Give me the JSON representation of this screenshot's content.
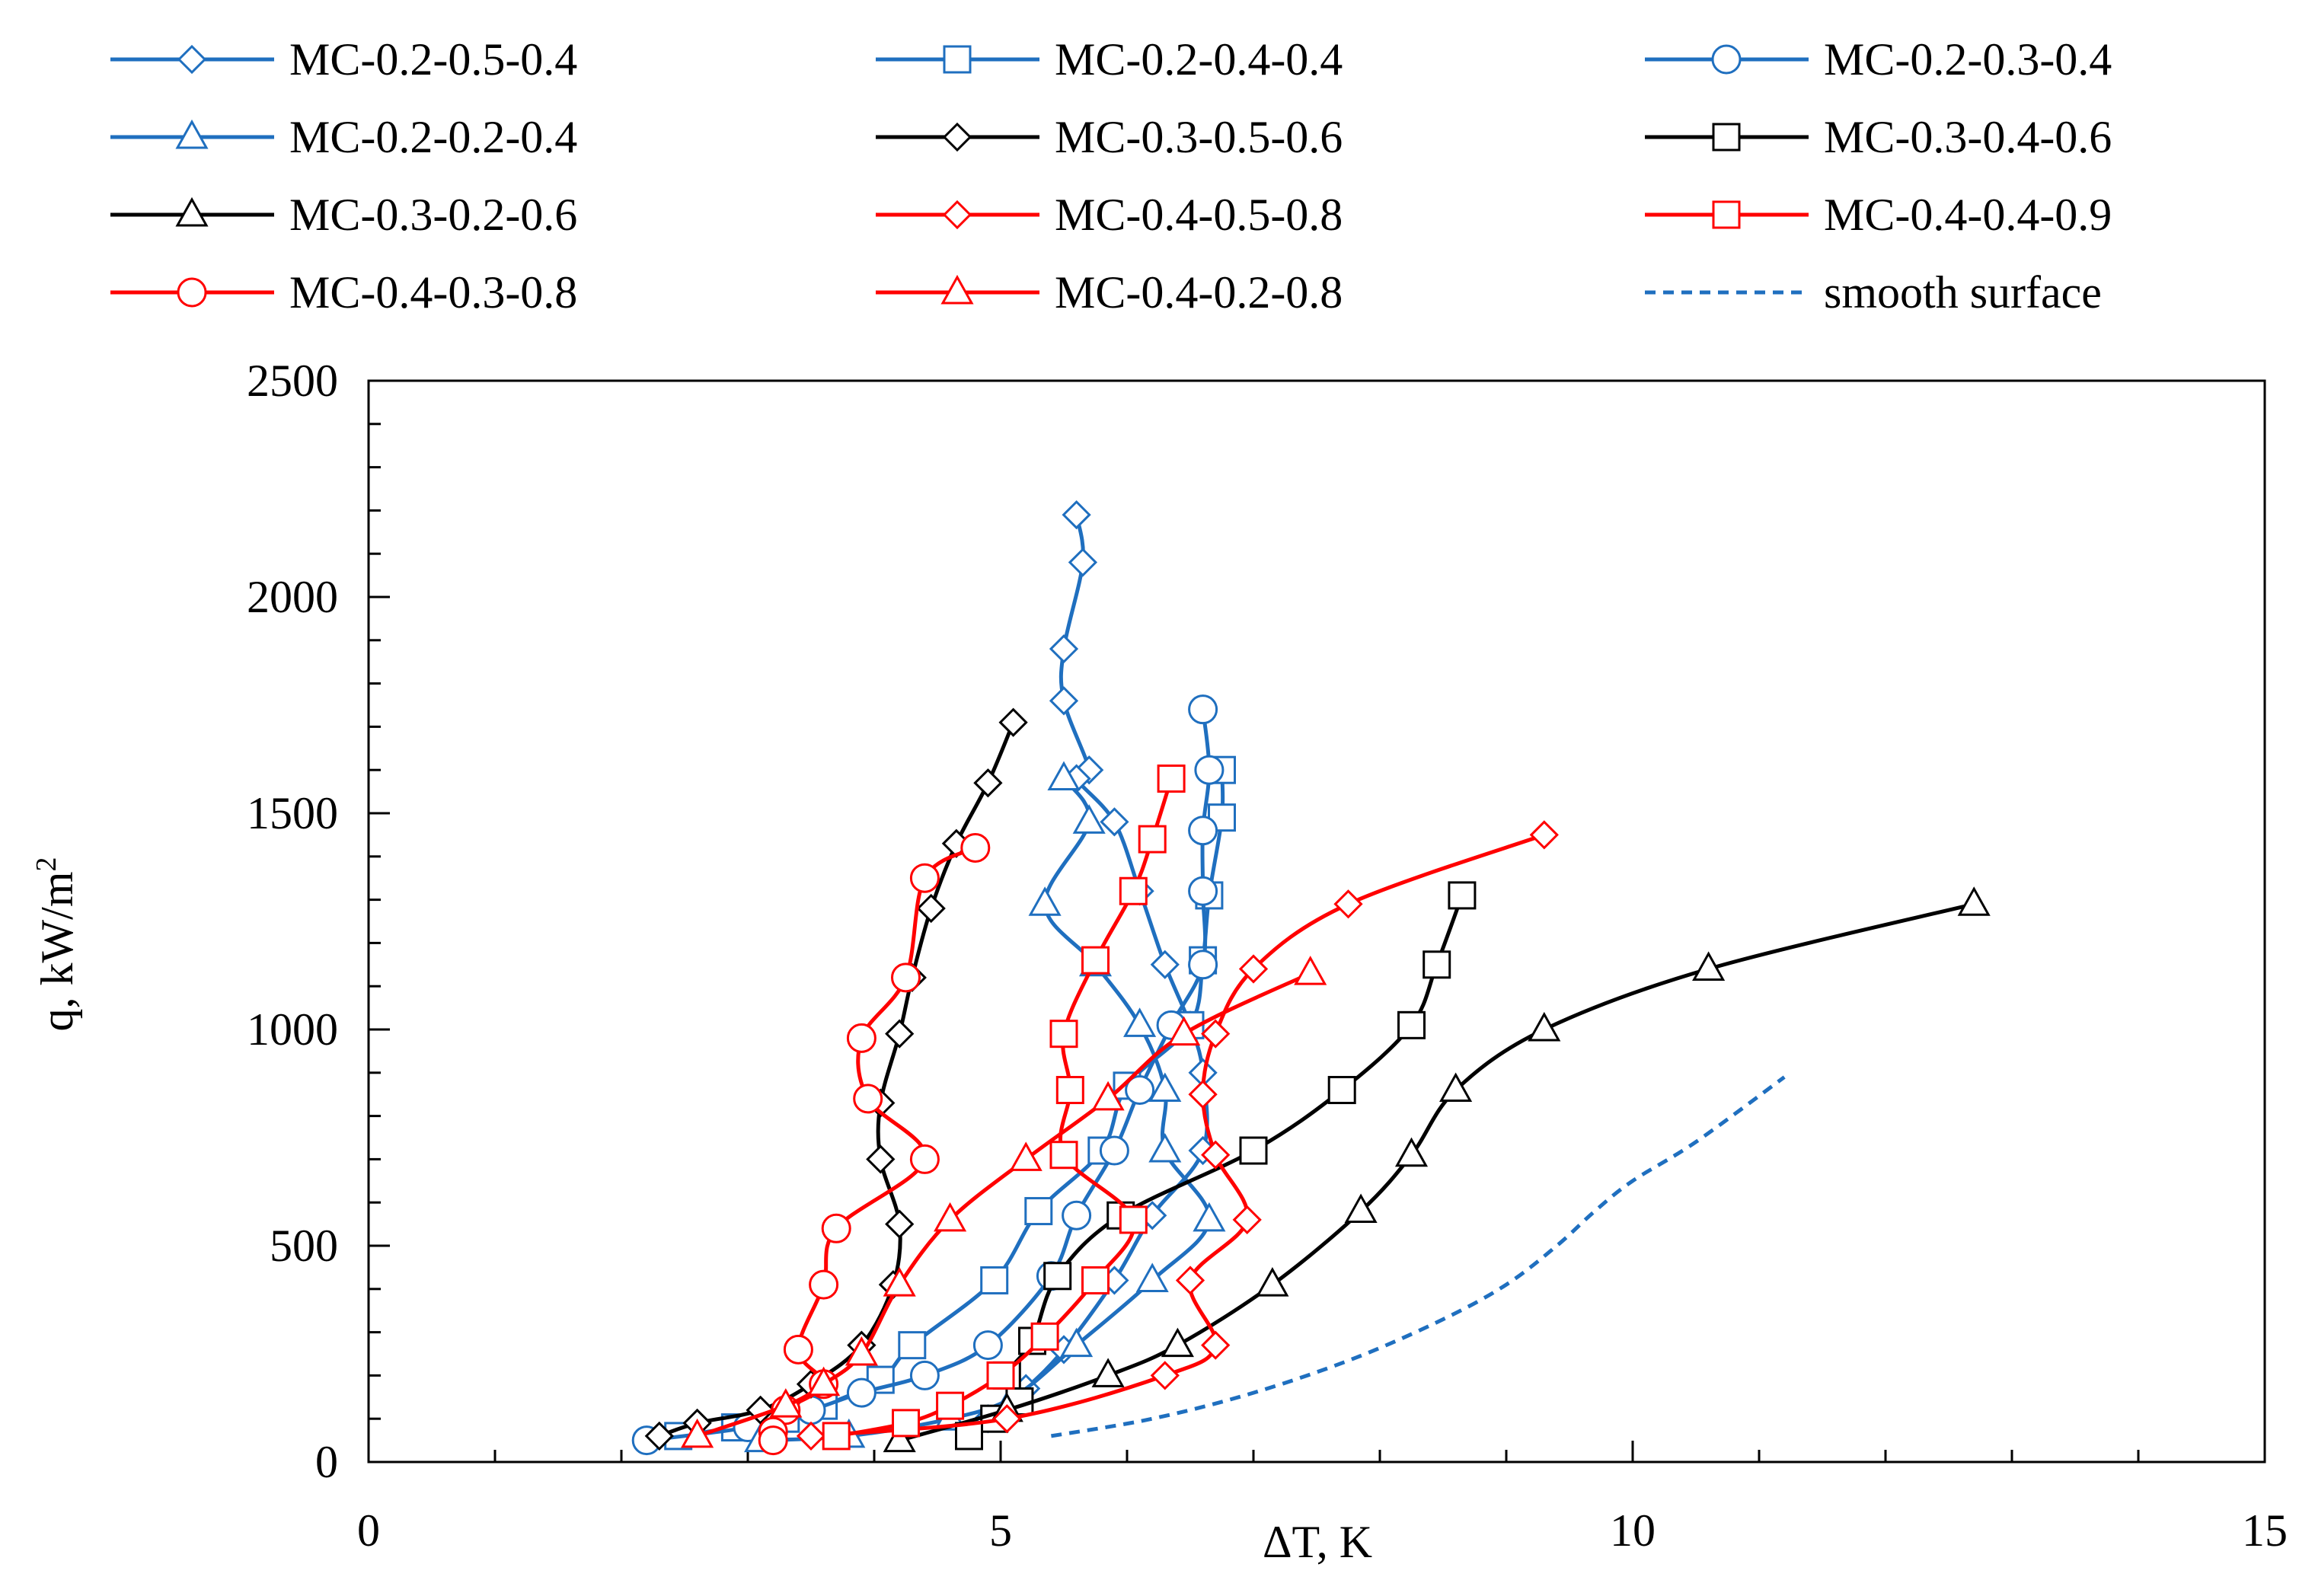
{
  "chart_data": {
    "type": "line",
    "title": "",
    "xlabel": "ΔT, K",
    "ylabel_main": "q, kW/m",
    "ylabel_sup": "2",
    "xlim": [
      0,
      15
    ],
    "ylim": [
      0,
      2500
    ],
    "xticks": [
      0,
      5,
      10,
      15
    ],
    "yticks": [
      0,
      500,
      1000,
      1500,
      2000,
      2500
    ],
    "grid": false,
    "legend_position": "top",
    "colors": {
      "blue": "#1f6fbf",
      "black": "#000000",
      "red": "#ff0000",
      "smooth": "#1f6fbf"
    },
    "series": [
      {
        "name": "MC-0.2-0.5-0.4",
        "color": "blue",
        "marker": "diamond",
        "points": [
          [
            5.6,
            2190
          ],
          [
            5.65,
            2080
          ],
          [
            5.5,
            1880
          ],
          [
            5.5,
            1760
          ],
          [
            5.7,
            1600
          ],
          [
            5.6,
            1580
          ],
          [
            5.9,
            1480
          ],
          [
            6.1,
            1320
          ],
          [
            6.3,
            1150
          ],
          [
            6.5,
            1010
          ],
          [
            6.6,
            900
          ],
          [
            6.6,
            720
          ],
          [
            6.2,
            570
          ],
          [
            5.9,
            420
          ],
          [
            5.5,
            260
          ],
          [
            5.2,
            170
          ],
          [
            4.9,
            100
          ]
        ]
      },
      {
        "name": "MC-0.2-0.4-0.4",
        "color": "blue",
        "marker": "square",
        "points": [
          [
            6.75,
            1600
          ],
          [
            6.75,
            1490
          ],
          [
            6.65,
            1310
          ],
          [
            6.6,
            1160
          ],
          [
            6.5,
            1010
          ],
          [
            6.0,
            870
          ],
          [
            5.8,
            720
          ],
          [
            5.3,
            580
          ],
          [
            4.95,
            420
          ],
          [
            4.3,
            270
          ],
          [
            4.05,
            190
          ],
          [
            3.6,
            130
          ],
          [
            3.3,
            100
          ],
          [
            2.9,
            80
          ],
          [
            2.45,
            60
          ]
        ]
      },
      {
        "name": "MC-0.2-0.3-0.4",
        "color": "blue",
        "marker": "circle",
        "points": [
          [
            6.6,
            1740
          ],
          [
            6.65,
            1600
          ],
          [
            6.6,
            1460
          ],
          [
            6.6,
            1320
          ],
          [
            6.6,
            1150
          ],
          [
            6.35,
            1010
          ],
          [
            6.1,
            860
          ],
          [
            5.9,
            720
          ],
          [
            5.6,
            570
          ],
          [
            5.4,
            430
          ],
          [
            4.9,
            270
          ],
          [
            4.4,
            200
          ],
          [
            3.9,
            160
          ],
          [
            3.5,
            120
          ],
          [
            3.0,
            80
          ],
          [
            2.2,
            50
          ]
        ]
      },
      {
        "name": "MC-0.2-0.2-0.4",
        "color": "blue",
        "marker": "triangle",
        "points": [
          [
            5.5,
            1580
          ],
          [
            5.7,
            1480
          ],
          [
            5.35,
            1290
          ],
          [
            5.75,
            1150
          ],
          [
            6.1,
            1010
          ],
          [
            6.3,
            860
          ],
          [
            6.3,
            720
          ],
          [
            6.65,
            560
          ],
          [
            6.2,
            420
          ],
          [
            5.6,
            270
          ],
          [
            5.1,
            150
          ],
          [
            4.6,
            100
          ],
          [
            3.8,
            60
          ],
          [
            3.1,
            50
          ]
        ]
      },
      {
        "name": "MC-0.3-0.5-0.6",
        "color": "black",
        "marker": "diamond",
        "points": [
          [
            5.1,
            1710
          ],
          [
            4.9,
            1570
          ],
          [
            4.65,
            1430
          ],
          [
            4.45,
            1280
          ],
          [
            4.3,
            1120
          ],
          [
            4.2,
            990
          ],
          [
            4.05,
            830
          ],
          [
            4.05,
            700
          ],
          [
            4.2,
            550
          ],
          [
            4.15,
            410
          ],
          [
            3.9,
            270
          ],
          [
            3.5,
            180
          ],
          [
            3.1,
            120
          ],
          [
            2.6,
            90
          ],
          [
            2.3,
            60
          ]
        ]
      },
      {
        "name": "MC-0.3-0.4-0.6",
        "color": "black",
        "marker": "square",
        "points": [
          [
            8.65,
            1310
          ],
          [
            8.45,
            1150
          ],
          [
            8.25,
            1010
          ],
          [
            7.7,
            860
          ],
          [
            7.0,
            720
          ],
          [
            5.95,
            570
          ],
          [
            5.45,
            430
          ],
          [
            5.25,
            280
          ],
          [
            5.05,
            200
          ],
          [
            5.15,
            140
          ],
          [
            4.95,
            100
          ],
          [
            4.75,
            60
          ]
        ]
      },
      {
        "name": "MC-0.3-0.2-0.6",
        "color": "black",
        "marker": "triangle",
        "points": [
          [
            12.7,
            1290
          ],
          [
            10.6,
            1140
          ],
          [
            9.3,
            1000
          ],
          [
            8.6,
            860
          ],
          [
            8.25,
            710
          ],
          [
            7.85,
            580
          ],
          [
            7.15,
            410
          ],
          [
            6.4,
            270
          ],
          [
            5.85,
            200
          ],
          [
            5.05,
            120
          ],
          [
            4.2,
            50
          ]
        ]
      },
      {
        "name": "MC-0.4-0.5-0.8",
        "color": "red",
        "marker": "diamond",
        "points": [
          [
            9.3,
            1450
          ],
          [
            7.75,
            1290
          ],
          [
            7.0,
            1140
          ],
          [
            6.7,
            990
          ],
          [
            6.6,
            850
          ],
          [
            6.7,
            710
          ],
          [
            6.95,
            560
          ],
          [
            6.5,
            420
          ],
          [
            6.7,
            270
          ],
          [
            6.3,
            200
          ],
          [
            5.05,
            100
          ],
          [
            3.5,
            60
          ]
        ]
      },
      {
        "name": "MC-0.4-0.4-0.9",
        "color": "red",
        "marker": "square",
        "points": [
          [
            6.35,
            1580
          ],
          [
            6.2,
            1440
          ],
          [
            6.05,
            1320
          ],
          [
            5.75,
            1160
          ],
          [
            5.5,
            990
          ],
          [
            5.55,
            860
          ],
          [
            5.5,
            710
          ],
          [
            6.05,
            560
          ],
          [
            5.75,
            420
          ],
          [
            5.35,
            290
          ],
          [
            5.0,
            200
          ],
          [
            4.6,
            130
          ],
          [
            4.25,
            90
          ],
          [
            3.7,
            60
          ]
        ]
      },
      {
        "name": "MC-0.4-0.3-0.8",
        "color": "red",
        "marker": "circle",
        "points": [
          [
            4.8,
            1420
          ],
          [
            4.4,
            1350
          ],
          [
            4.25,
            1120
          ],
          [
            3.9,
            980
          ],
          [
            3.95,
            840
          ],
          [
            4.4,
            700
          ],
          [
            3.7,
            540
          ],
          [
            3.6,
            410
          ],
          [
            3.4,
            260
          ],
          [
            3.6,
            180
          ],
          [
            3.3,
            120
          ],
          [
            3.2,
            70
          ],
          [
            3.2,
            50
          ]
        ]
      },
      {
        "name": "MC-0.4-0.2-0.8",
        "color": "red",
        "marker": "triangle",
        "points": [
          [
            7.45,
            1130
          ],
          [
            6.45,
            990
          ],
          [
            5.85,
            840
          ],
          [
            5.2,
            700
          ],
          [
            4.6,
            560
          ],
          [
            4.2,
            410
          ],
          [
            3.9,
            250
          ],
          [
            3.6,
            180
          ],
          [
            3.3,
            130
          ],
          [
            2.6,
            60
          ]
        ]
      },
      {
        "name": "smooth surface",
        "color": "smooth",
        "marker": "none",
        "dashed": true,
        "points": [
          [
            5.4,
            60
          ],
          [
            6.2,
            100
          ],
          [
            7.0,
            160
          ],
          [
            7.8,
            240
          ],
          [
            8.5,
            330
          ],
          [
            9.0,
            410
          ],
          [
            9.4,
            500
          ],
          [
            9.7,
            580
          ],
          [
            10.0,
            650
          ],
          [
            10.5,
            740
          ],
          [
            11.2,
            890
          ]
        ]
      }
    ]
  }
}
